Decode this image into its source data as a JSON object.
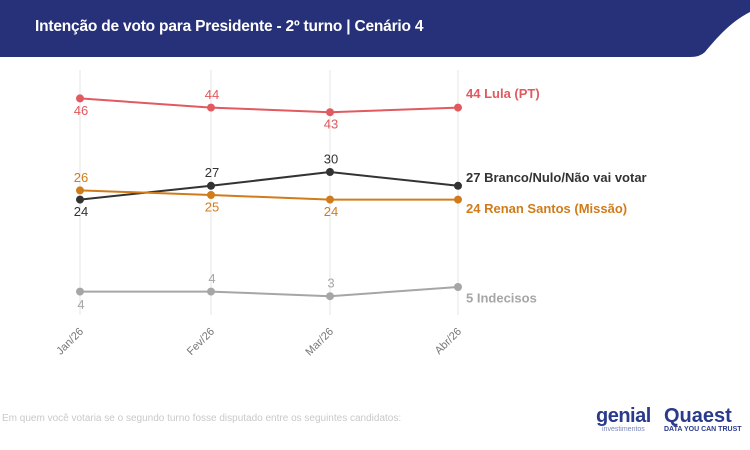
{
  "header": {
    "title": "Intenção de voto para Presidente - 2º turno | Cenário 4",
    "color": "#26317a"
  },
  "footnote": "Em quem você votaria se o segundo turno fosse disputado entre os seguintes candidatos:",
  "logos": {
    "genial": "genial",
    "genial_sub": "investimentos",
    "quaest": "Quaest",
    "quaest_sub": "DATA YOU CAN TRUST"
  },
  "chart_data": {
    "type": "line",
    "title": "Intenção de voto para Presidente - 2º turno | Cenário 4",
    "categories": [
      "Jan/26",
      "Fev/26",
      "Mar/26",
      "Abr/26"
    ],
    "grid": "vertical",
    "series": [
      {
        "name": "Lula (PT)",
        "values": [
          46,
          44,
          43,
          44
        ],
        "color": "#e05a5f"
      },
      {
        "name": "Branco/Nulo/Não vai votar",
        "values": [
          24,
          27,
          30,
          27
        ],
        "color": "#333333"
      },
      {
        "name": "Renan Santos (Missão)",
        "values": [
          26,
          25,
          24,
          24
        ],
        "color": "#d07c1a"
      },
      {
        "name": "Indecisos",
        "values": [
          4,
          4,
          3,
          5
        ],
        "color": "#a6a6a6"
      }
    ]
  }
}
